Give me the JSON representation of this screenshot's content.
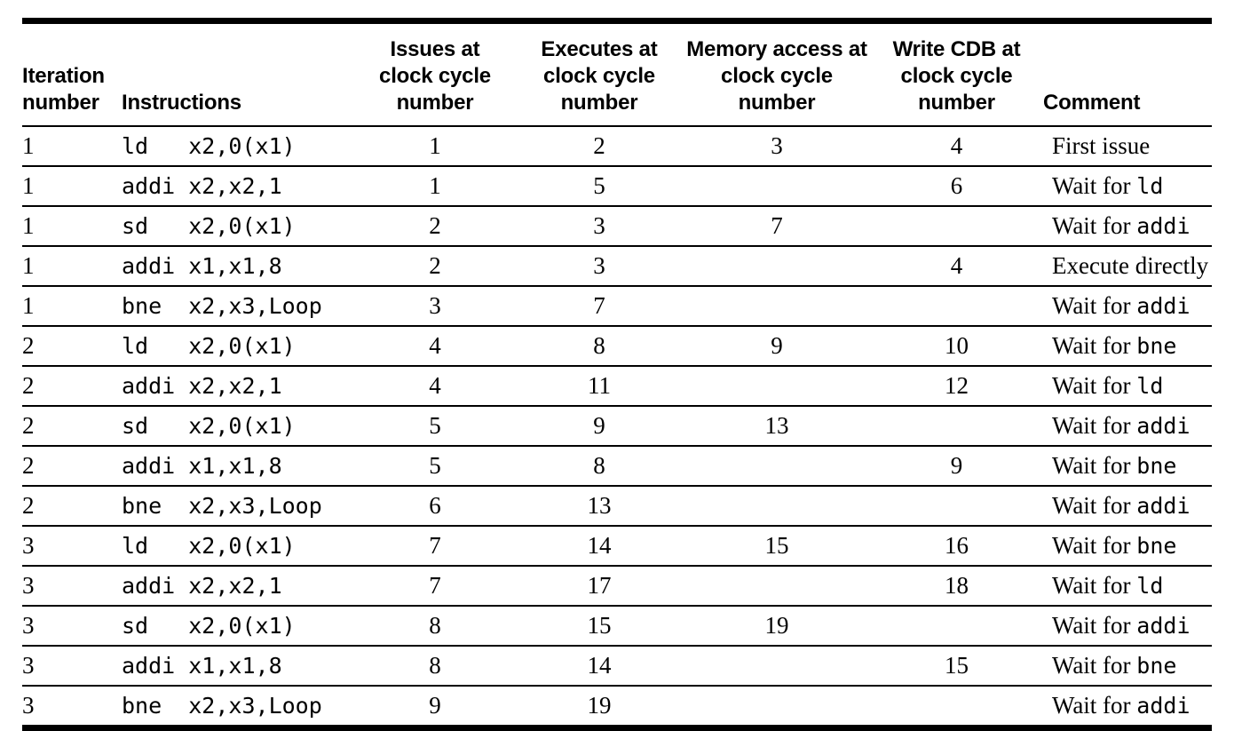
{
  "table": {
    "columns": [
      {
        "id": "iteration",
        "label": "Iteration\nnumber"
      },
      {
        "id": "instruction",
        "label": "Instructions"
      },
      {
        "id": "issue",
        "label": "Issues at\nclock cycle\nnumber"
      },
      {
        "id": "execute",
        "label": "Executes at\nclock cycle\nnumber"
      },
      {
        "id": "memory",
        "label": "Memory access at\nclock cycle\nnumber"
      },
      {
        "id": "cdb",
        "label": "Write CDB at\nclock cycle\nnumber"
      },
      {
        "id": "comment",
        "label": "Comment"
      }
    ],
    "rows": [
      {
        "iteration": "1",
        "instruction": "ld   x2,0(x1)",
        "issue": "1",
        "execute": "2",
        "memory": "3",
        "cdb": "4",
        "comment_text": "First issue",
        "comment_code": ""
      },
      {
        "iteration": "1",
        "instruction": "addi x2,x2,1",
        "issue": "1",
        "execute": "5",
        "memory": "",
        "cdb": "6",
        "comment_text": "Wait for ",
        "comment_code": "ld"
      },
      {
        "iteration": "1",
        "instruction": "sd   x2,0(x1)",
        "issue": "2",
        "execute": "3",
        "memory": "7",
        "cdb": "",
        "comment_text": "Wait for ",
        "comment_code": "addi"
      },
      {
        "iteration": "1",
        "instruction": "addi x1,x1,8",
        "issue": "2",
        "execute": "3",
        "memory": "",
        "cdb": "4",
        "comment_text": "Execute directly",
        "comment_code": ""
      },
      {
        "iteration": "1",
        "instruction": "bne  x2,x3,Loop",
        "issue": "3",
        "execute": "7",
        "memory": "",
        "cdb": "",
        "comment_text": "Wait for ",
        "comment_code": "addi"
      },
      {
        "iteration": "2",
        "instruction": "ld   x2,0(x1)",
        "issue": "4",
        "execute": "8",
        "memory": "9",
        "cdb": "10",
        "comment_text": "Wait for ",
        "comment_code": "bne"
      },
      {
        "iteration": "2",
        "instruction": "addi x2,x2,1",
        "issue": "4",
        "execute": "11",
        "memory": "",
        "cdb": "12",
        "comment_text": "Wait for ",
        "comment_code": "ld"
      },
      {
        "iteration": "2",
        "instruction": "sd   x2,0(x1)",
        "issue": "5",
        "execute": "9",
        "memory": "13",
        "cdb": "",
        "comment_text": "Wait for ",
        "comment_code": "addi"
      },
      {
        "iteration": "2",
        "instruction": "addi x1,x1,8",
        "issue": "5",
        "execute": "8",
        "memory": "",
        "cdb": "9",
        "comment_text": "Wait for ",
        "comment_code": "bne"
      },
      {
        "iteration": "2",
        "instruction": "bne  x2,x3,Loop",
        "issue": "6",
        "execute": "13",
        "memory": "",
        "cdb": "",
        "comment_text": "Wait for ",
        "comment_code": "addi"
      },
      {
        "iteration": "3",
        "instruction": "ld   x2,0(x1)",
        "issue": "7",
        "execute": "14",
        "memory": "15",
        "cdb": "16",
        "comment_text": "Wait for ",
        "comment_code": "bne"
      },
      {
        "iteration": "3",
        "instruction": "addi x2,x2,1",
        "issue": "7",
        "execute": "17",
        "memory": "",
        "cdb": "18",
        "comment_text": "Wait for ",
        "comment_code": "ld"
      },
      {
        "iteration": "3",
        "instruction": "sd   x2,0(x1)",
        "issue": "8",
        "execute": "15",
        "memory": "19",
        "cdb": "",
        "comment_text": "Wait for ",
        "comment_code": "addi"
      },
      {
        "iteration": "3",
        "instruction": "addi x1,x1,8",
        "issue": "8",
        "execute": "14",
        "memory": "",
        "cdb": "15",
        "comment_text": "Wait for ",
        "comment_code": "bne"
      },
      {
        "iteration": "3",
        "instruction": "bne  x2,x3,Loop",
        "issue": "9",
        "execute": "19",
        "memory": "",
        "cdb": "",
        "comment_text": "Wait for ",
        "comment_code": "addi"
      }
    ]
  },
  "colors": {
    "text": "#000000",
    "rule": "#000000",
    "background": "#ffffff"
  }
}
